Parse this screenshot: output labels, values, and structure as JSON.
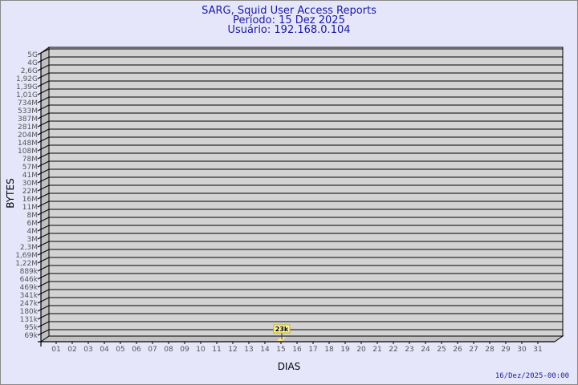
{
  "chart_data": {
    "type": "bar",
    "title": "SARG, Squid User Access Reports",
    "subtitle_lines": [
      "Período: 15 Dez 2025",
      "Usuário: 192.168.0.104"
    ],
    "xlabel": "DIAS",
    "ylabel": "BYTES",
    "y_scale": "log",
    "y_tick_labels": [
      "5G",
      "4G",
      "2,6G",
      "1,92G",
      "1,39G",
      "1,01G",
      "734M",
      "533M",
      "387M",
      "281M",
      "204M",
      "148M",
      "108M",
      "78M",
      "57M",
      "41M",
      "30M",
      "22M",
      "16M",
      "11M",
      "8M",
      "6M",
      "4M",
      "3M",
      "2,3M",
      "1,69M",
      "1,22M",
      "889k",
      "646k",
      "469k",
      "341k",
      "247k",
      "180k",
      "131k",
      "95k",
      "69k"
    ],
    "categories": [
      "01",
      "02",
      "03",
      "04",
      "05",
      "06",
      "07",
      "08",
      "09",
      "10",
      "11",
      "12",
      "13",
      "14",
      "15",
      "16",
      "17",
      "18",
      "19",
      "20",
      "21",
      "22",
      "23",
      "24",
      "25",
      "26",
      "27",
      "28",
      "29",
      "30",
      "31"
    ],
    "series": [
      {
        "points": [
          {
            "x": "15",
            "value": 23000,
            "label": "23k"
          }
        ]
      }
    ],
    "grid": true,
    "colors": {
      "background": "#e6e6fa",
      "plot": "#d3d3d3",
      "side_wall": "#c0c0c0",
      "bar": "#ffe680",
      "title": "#1a1aa0"
    }
  },
  "footer": {
    "timestamp": "16/Dez/2025-00:00"
  }
}
